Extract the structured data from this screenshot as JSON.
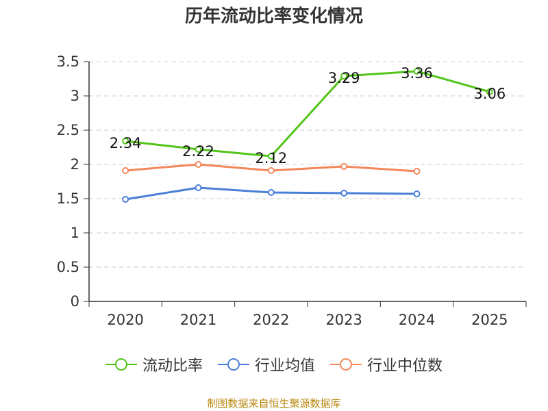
{
  "title": "历年流动比率变化情况",
  "source_note": "制图数据来自恒生聚源数据库",
  "colors": {
    "current_ratio": "#52c41a",
    "industry_mean": "#4a7fd8",
    "industry_median": "#f4875a",
    "grid": "#cccccc",
    "axis": "#333333"
  },
  "chart_data": {
    "type": "line",
    "title": "历年流动比率变化情况",
    "xlabel": "",
    "ylabel": "",
    "categories": [
      "2020",
      "2021",
      "2022",
      "2023",
      "2024",
      "2025"
    ],
    "ylim": [
      0,
      3.5
    ],
    "yticks": [
      "0",
      "0.5",
      "1",
      "1.5",
      "2",
      "2.5",
      "3",
      "3.5"
    ],
    "grid": true,
    "legend_position": "bottom",
    "series": [
      {
        "name": "流动比率",
        "key": "current_ratio",
        "values": [
          2.34,
          2.22,
          2.12,
          3.29,
          3.36,
          3.06
        ],
        "labels": [
          "2.34",
          "2.22",
          "2.12",
          "3.29",
          "3.36",
          "3.06"
        ]
      },
      {
        "name": "行业均值",
        "key": "industry_mean",
        "values": [
          1.49,
          1.66,
          1.59,
          1.58,
          1.57,
          null
        ]
      },
      {
        "name": "行业中位数",
        "key": "industry_median",
        "values": [
          1.91,
          2.0,
          1.91,
          1.97,
          1.9,
          null
        ]
      }
    ]
  }
}
